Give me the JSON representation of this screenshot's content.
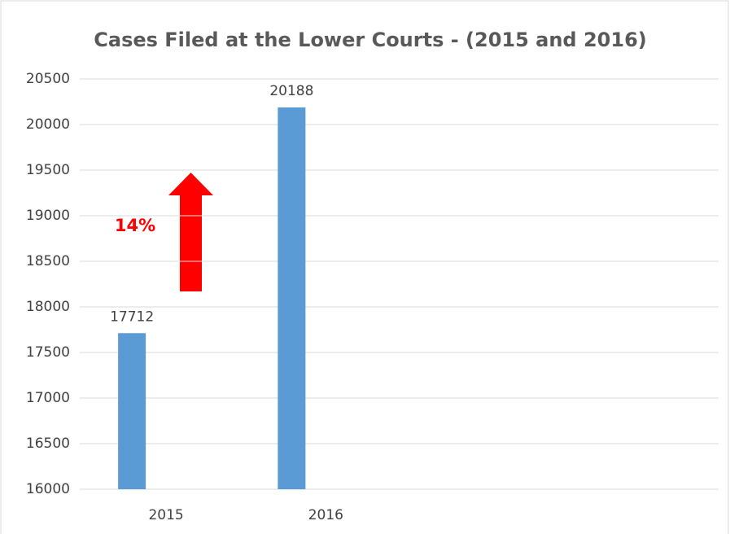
{
  "chart_data": {
    "type": "bar",
    "title": "Cases Filed at the Lower Courts - (2015 and 2016)",
    "categories": [
      "2015",
      "2016",
      null,
      null
    ],
    "values": [
      17712,
      20188,
      null,
      null
    ],
    "color": "#5b9bd5",
    "ylim": [
      16000,
      20500
    ],
    "yticks": [
      16000,
      16500,
      17000,
      17500,
      18000,
      18500,
      19000,
      19500,
      20000,
      20500
    ],
    "grid": true,
    "annotation": "14%"
  }
}
